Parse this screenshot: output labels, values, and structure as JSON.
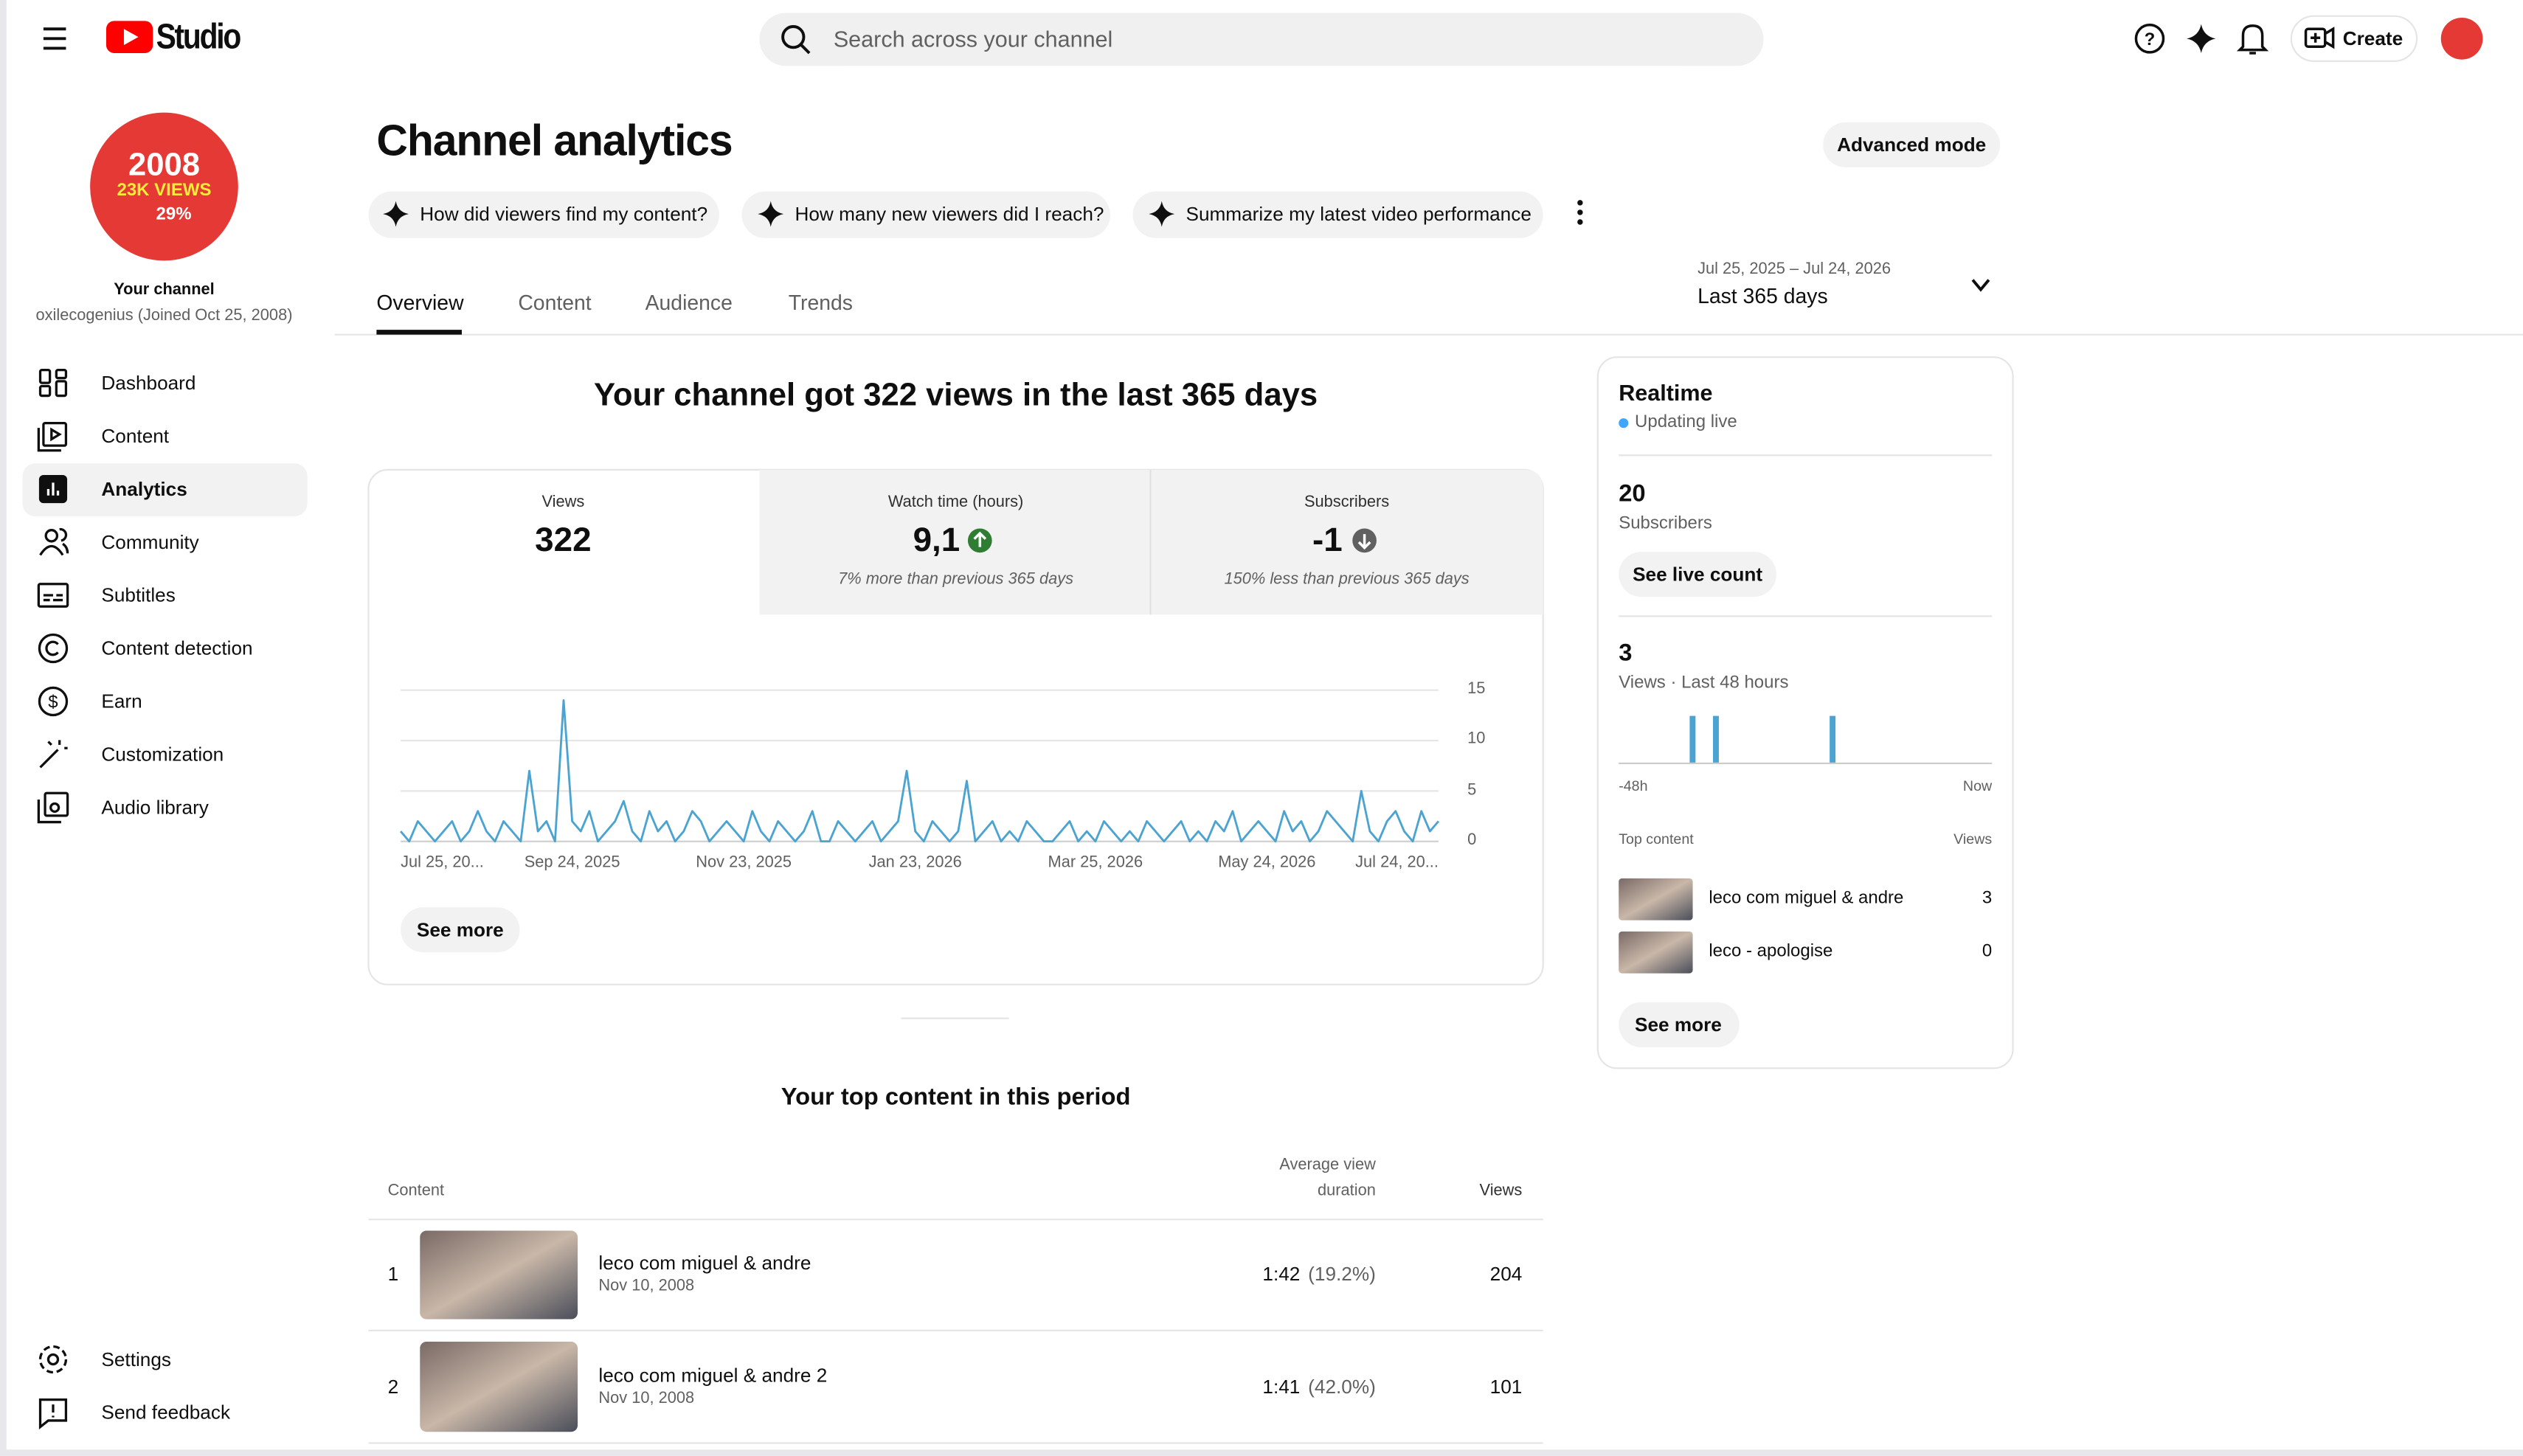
{
  "header": {
    "logo_text": "Studio",
    "search_placeholder": "Search across your channel",
    "create": "Create"
  },
  "sidebar": {
    "avatar_lines": [
      "2008",
      "23K VIEWS",
      "29%"
    ],
    "channel_label": "Your channel",
    "channel_name": "oxilecogenius (Joined Oct 25, 2008)",
    "nav": [
      "Dashboard",
      "Content",
      "Analytics",
      "Community",
      "Subtitles",
      "Content detection",
      "Earn",
      "Customization",
      "Audio library"
    ],
    "footer_nav": [
      "Settings",
      "Send feedback"
    ]
  },
  "page": {
    "title": "Channel analytics",
    "advanced": "Advanced mode",
    "prompts": [
      "How did viewers find my content?",
      "How many new viewers did I reach?",
      "Summarize my latest video performance"
    ],
    "tabs": [
      "Overview",
      "Content",
      "Audience",
      "Trends"
    ],
    "date_range": "Jul 25, 2025 – Jul 24, 2026",
    "period": "Last 365 days"
  },
  "summary": {
    "headline": "Your channel got 322 views in the last 365 days",
    "cards": [
      {
        "label": "Views",
        "value": "322"
      },
      {
        "label": "Watch time (hours)",
        "value": "9,1",
        "note": "7% more than previous 365 days"
      },
      {
        "label": "Subscribers",
        "value": "-1",
        "note": "150% less than previous 365 days"
      }
    ],
    "see_more": "See more"
  },
  "chart_data": [
    {
      "type": "line",
      "color": "#4ba3d1",
      "values": [
        1,
        0,
        2,
        1,
        0,
        1,
        2,
        0,
        1,
        3,
        1,
        0,
        2,
        1,
        0,
        7,
        1,
        2,
        0,
        14,
        2,
        1,
        3,
        0,
        1,
        2,
        4,
        1,
        0,
        3,
        1,
        2,
        0,
        1,
        3,
        2,
        0,
        1,
        2,
        1,
        0,
        3,
        1,
        0,
        2,
        1,
        0,
        1,
        3,
        0,
        0,
        2,
        1,
        0,
        1,
        2,
        0,
        1,
        2,
        7,
        1,
        0,
        2,
        1,
        0,
        1,
        6,
        0,
        1,
        2,
        0,
        1,
        0,
        2,
        1,
        0,
        0,
        1,
        2,
        0,
        1,
        0,
        2,
        1,
        0,
        1,
        0,
        2,
        1,
        0,
        1,
        2,
        0,
        1,
        0,
        2,
        1,
        3,
        0,
        1,
        2,
        1,
        0,
        3,
        1,
        2,
        0,
        1,
        3,
        2,
        1,
        0,
        5,
        1,
        0,
        2,
        3,
        1,
        0,
        3,
        1,
        2
      ],
      "xticks": [
        {
          "value": 0,
          "label": "Jul 25, 20..."
        },
        {
          "value": 20,
          "label": "Sep 24, 2025"
        },
        {
          "value": 40,
          "label": "Nov 23, 2025"
        },
        {
          "value": 60,
          "label": "Jan 23, 2026"
        },
        {
          "value": 81,
          "label": "Mar 25, 2026"
        },
        {
          "value": 101,
          "label": "May 24, 2026"
        },
        {
          "value": 121,
          "label": "Jul 24, 20..."
        }
      ],
      "ylim": [
        0,
        15
      ],
      "yticks": [
        0,
        5,
        10,
        15
      ],
      "grid": true
    },
    {
      "type": "bar",
      "color": "#4ba3d1",
      "ylim": [
        0,
        1
      ],
      "values": [
        0,
        0,
        0,
        0,
        0,
        0,
        0,
        0,
        0,
        1,
        0,
        0,
        1,
        0,
        0,
        0,
        0,
        0,
        0,
        0,
        0,
        0,
        0,
        0,
        0,
        0,
        0,
        1,
        0,
        0,
        0,
        0,
        0,
        0,
        0,
        0,
        0,
        0,
        0,
        0,
        0,
        0,
        0,
        0,
        0,
        0,
        0,
        0
      ]
    }
  ],
  "top_content": {
    "title": "Your top content in this period",
    "columns": [
      "Content",
      "Average view",
      "duration",
      "Views"
    ],
    "rows": [
      {
        "rank": "1",
        "title": "leco com miguel & andre",
        "date": "Nov 10, 2008",
        "duration": "1:42",
        "percent": "(19.2%)",
        "views": "204"
      },
      {
        "rank": "2",
        "title": "leco com miguel & andre 2",
        "date": "Nov 10, 2008",
        "duration": "1:41",
        "percent": "(42.0%)",
        "views": "101"
      }
    ]
  },
  "realtime": {
    "title": "Realtime",
    "status": "Updating live",
    "subscribers": "20",
    "subscribers_label": "Subscribers",
    "live_count": "See live count",
    "views": "3",
    "views_label": "Views · Last 48 hours",
    "axis_start": "-48h",
    "axis_end": "Now",
    "top_content_label": "Top content",
    "views_col": "Views",
    "items": [
      {
        "title": "leco com miguel & andre",
        "views": "3"
      },
      {
        "title": "leco - apologise",
        "views": "0"
      }
    ],
    "see_more": "See more"
  }
}
